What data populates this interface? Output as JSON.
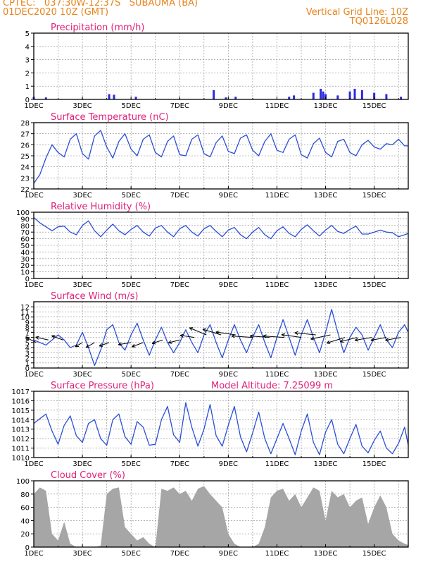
{
  "header": {
    "line1_left": "CPTEC:   037:30W-12:37S   SUBAUMA (BA)",
    "line2_left": "01DEC2020 10Z (GMT)",
    "line1_right": "Vertical Grid Line: 10Z",
    "line2_right": "TQ0126L028"
  },
  "colors": {
    "header": "#e8831c",
    "title": "#e0207a",
    "line": "#2a4fd6",
    "bar": "#2a2ae0",
    "cloud": "#a6a6a6",
    "arrow": "#000000",
    "grid": "#888888"
  },
  "chart_data": [
    {
      "type": "bar",
      "title": "Precipitation (mm/h)",
      "x_tick_labels": [
        "1DEC",
        "3DEC",
        "5DEC",
        "7DEC",
        "9DEC",
        "11DEC",
        "13DEC",
        "15DEC"
      ],
      "x_day_range": [
        1,
        16.4
      ],
      "ylim": [
        0,
        5
      ],
      "y_ticks": [
        0,
        1,
        2,
        3,
        4,
        5
      ],
      "series": [
        {
          "x": [
            1.0,
            1.5,
            3.0,
            4.1,
            4.3,
            5.2,
            8.4,
            8.9,
            9.3,
            11.5,
            11.7,
            12.5,
            12.8,
            12.9,
            13.0,
            13.5,
            14.0,
            14.2,
            14.5,
            15.0,
            15.5,
            16.1
          ],
          "values": [
            0.2,
            0.15,
            0.05,
            0.4,
            0.35,
            0.2,
            0.7,
            0.15,
            0.2,
            0.2,
            0.3,
            0.5,
            0.8,
            0.6,
            0.4,
            0.3,
            0.6,
            0.8,
            0.7,
            0.5,
            0.4,
            0.2
          ]
        }
      ]
    },
    {
      "type": "line",
      "title": "Surface Temperature (nC)",
      "x_tick_labels": [
        "1DEC",
        "3DEC",
        "5DEC",
        "7DEC",
        "9DEC",
        "11DEC",
        "13DEC",
        "15DEC"
      ],
      "x_day_range": [
        1,
        16.4
      ],
      "ylim": [
        22,
        28
      ],
      "y_ticks": [
        22,
        23,
        24,
        25,
        26,
        27,
        28
      ],
      "series": [
        {
          "x": [
            1.0,
            1.25,
            1.5,
            1.75,
            2.0,
            2.25,
            2.5,
            2.75,
            3.0,
            3.25,
            3.5,
            3.75,
            4.0,
            4.25,
            4.5,
            4.75,
            5.0,
            5.25,
            5.5,
            5.75,
            6.0,
            6.25,
            6.5,
            6.75,
            7.0,
            7.25,
            7.5,
            7.75,
            8.0,
            8.25,
            8.5,
            8.75,
            9.0,
            9.25,
            9.5,
            9.75,
            10.0,
            10.25,
            10.5,
            10.75,
            11.0,
            11.25,
            11.5,
            11.75,
            12.0,
            12.25,
            12.5,
            12.75,
            13.0,
            13.25,
            13.5,
            13.75,
            14.0,
            14.25,
            14.5,
            14.75,
            15.0,
            15.25,
            15.5,
            15.75,
            16.0,
            16.25,
            16.4
          ],
          "values": [
            22.5,
            23.3,
            24.8,
            26.0,
            25.3,
            24.9,
            26.5,
            27.0,
            25.2,
            24.7,
            26.8,
            27.3,
            25.8,
            24.8,
            26.3,
            27.0,
            25.6,
            25.0,
            26.5,
            26.9,
            25.3,
            24.9,
            26.3,
            26.8,
            25.1,
            25.0,
            26.5,
            26.9,
            25.2,
            24.9,
            26.2,
            26.8,
            25.4,
            25.2,
            26.6,
            26.9,
            25.5,
            25.0,
            26.3,
            27.0,
            25.5,
            25.3,
            26.5,
            26.9,
            25.1,
            24.8,
            26.1,
            26.6,
            25.3,
            24.9,
            26.3,
            26.5,
            25.3,
            25.0,
            26.0,
            26.4,
            25.8,
            25.6,
            26.1,
            26.0,
            26.5,
            25.9,
            25.9
          ]
        }
      ]
    },
    {
      "type": "line",
      "title": "Relative Humidity (%)",
      "x_tick_labels": [
        "1DEC",
        "3DEC",
        "5DEC",
        "7DEC",
        "9DEC",
        "11DEC",
        "13DEC",
        "15DEC"
      ],
      "x_day_range": [
        1,
        16.4
      ],
      "ylim": [
        0,
        100
      ],
      "y_ticks": [
        0,
        10,
        20,
        30,
        40,
        50,
        60,
        70,
        80,
        90,
        100
      ],
      "series": [
        {
          "x": [
            1.0,
            1.25,
            1.5,
            1.75,
            2.0,
            2.25,
            2.5,
            2.75,
            3.0,
            3.25,
            3.5,
            3.75,
            4.0,
            4.25,
            4.5,
            4.75,
            5.0,
            5.25,
            5.5,
            5.75,
            6.0,
            6.25,
            6.5,
            6.75,
            7.0,
            7.25,
            7.5,
            7.75,
            8.0,
            8.25,
            8.5,
            8.75,
            9.0,
            9.25,
            9.5,
            9.75,
            10.0,
            10.25,
            10.5,
            10.75,
            11.0,
            11.25,
            11.5,
            11.75,
            12.0,
            12.25,
            12.5,
            12.75,
            13.0,
            13.25,
            13.5,
            13.75,
            14.0,
            14.25,
            14.5,
            14.75,
            15.0,
            15.25,
            15.5,
            15.75,
            16.0,
            16.25,
            16.4
          ],
          "values": [
            92,
            84,
            78,
            72,
            78,
            79,
            70,
            66,
            80,
            87,
            72,
            63,
            73,
            82,
            72,
            66,
            74,
            80,
            70,
            64,
            76,
            80,
            70,
            63,
            75,
            80,
            70,
            64,
            75,
            80,
            71,
            63,
            73,
            77,
            66,
            60,
            70,
            77,
            66,
            60,
            72,
            78,
            68,
            63,
            74,
            81,
            72,
            64,
            73,
            80,
            71,
            68,
            74,
            79,
            67,
            67,
            70,
            73,
            70,
            69,
            63,
            66,
            68
          ]
        }
      ]
    },
    {
      "type": "line",
      "title": "Surface Wind (m/s)",
      "x_tick_labels": [
        "1DEC",
        "3DEC",
        "5DEC",
        "7DEC",
        "9DEC",
        "11DEC",
        "13DEC",
        "15DEC"
      ],
      "x_day_range": [
        1,
        16.4
      ],
      "ylim": [
        0,
        13
      ],
      "y_ticks": [
        0,
        1,
        2,
        3,
        4,
        5,
        6,
        7,
        8,
        9,
        10,
        11,
        12
      ],
      "series": [
        {
          "x": [
            1.0,
            1.25,
            1.5,
            1.75,
            2.0,
            2.25,
            2.5,
            2.75,
            3.0,
            3.25,
            3.5,
            3.75,
            4.0,
            4.25,
            4.5,
            4.75,
            5.0,
            5.25,
            5.5,
            5.75,
            6.0,
            6.25,
            6.5,
            6.75,
            7.0,
            7.25,
            7.5,
            7.75,
            8.0,
            8.25,
            8.5,
            8.75,
            9.0,
            9.25,
            9.5,
            9.75,
            10.0,
            10.25,
            10.5,
            10.75,
            11.0,
            11.25,
            11.5,
            11.75,
            12.0,
            12.25,
            12.5,
            12.75,
            13.0,
            13.25,
            13.5,
            13.75,
            14.0,
            14.25,
            14.5,
            14.75,
            15.0,
            15.25,
            15.5,
            15.75,
            16.0,
            16.25,
            16.4
          ],
          "values": [
            5.5,
            5.0,
            4.5,
            5.5,
            6.5,
            5.5,
            4.0,
            4.5,
            7.0,
            4.0,
            0.5,
            3.5,
            7.5,
            8.5,
            5.0,
            3.5,
            6.5,
            8.8,
            5.5,
            2.5,
            5.5,
            8.0,
            5.0,
            3.0,
            5.0,
            7.5,
            5.0,
            3.0,
            6.5,
            8.5,
            5.0,
            2.0,
            5.5,
            8.5,
            5.5,
            3.0,
            6.0,
            8.5,
            5.0,
            2.0,
            6.0,
            9.5,
            6.0,
            2.5,
            6.5,
            9.5,
            6.0,
            3.0,
            7.0,
            11.5,
            7.0,
            3.0,
            6.0,
            8.0,
            6.5,
            3.5,
            6.0,
            8.5,
            5.5,
            4.0,
            7.0,
            8.5,
            7.0
          ]
        }
      ],
      "wind_vectors": [
        {
          "day": 1.1,
          "speed": 5.0,
          "dx": -14,
          "dy": -7
        },
        {
          "day": 1.6,
          "speed": 5.5,
          "dx": -18,
          "dy": -4
        },
        {
          "day": 2.2,
          "speed": 5.5,
          "dx": -16,
          "dy": -6
        },
        {
          "day": 3.0,
          "speed": 5.0,
          "dx": -10,
          "dy": 6
        },
        {
          "day": 3.5,
          "speed": 5.0,
          "dx": -12,
          "dy": 7
        },
        {
          "day": 4.1,
          "speed": 5.0,
          "dx": -14,
          "dy": 5
        },
        {
          "day": 5.0,
          "speed": 5.0,
          "dx": -18,
          "dy": 3
        },
        {
          "day": 5.5,
          "speed": 5.0,
          "dx": -16,
          "dy": 6
        },
        {
          "day": 6.3,
          "speed": 5.5,
          "dx": -15,
          "dy": 5
        },
        {
          "day": 7.0,
          "speed": 5.5,
          "dx": -16,
          "dy": 4
        },
        {
          "day": 7.6,
          "speed": 6.0,
          "dx": -20,
          "dy": -3
        },
        {
          "day": 8.1,
          "speed": 6.5,
          "dx": -24,
          "dy": -10
        },
        {
          "day": 8.7,
          "speed": 6.5,
          "dx": -26,
          "dy": -8
        },
        {
          "day": 9.3,
          "speed": 6.5,
          "dx": -28,
          "dy": -4
        },
        {
          "day": 10.0,
          "speed": 6.0,
          "dx": -30,
          "dy": -2
        },
        {
          "day": 10.7,
          "speed": 6.0,
          "dx": -28,
          "dy": -2
        },
        {
          "day": 11.3,
          "speed": 6.0,
          "dx": -30,
          "dy": -2
        },
        {
          "day": 12.0,
          "speed": 6.0,
          "dx": -28,
          "dy": -4
        },
        {
          "day": 12.6,
          "speed": 6.5,
          "dx": -30,
          "dy": -3
        },
        {
          "day": 13.2,
          "speed": 6.5,
          "dx": -28,
          "dy": 6
        },
        {
          "day": 13.8,
          "speed": 6.0,
          "dx": -26,
          "dy": 8
        },
        {
          "day": 14.3,
          "speed": 6.0,
          "dx": -24,
          "dy": 6
        },
        {
          "day": 14.9,
          "speed": 6.0,
          "dx": -24,
          "dy": 4
        },
        {
          "day": 15.5,
          "speed": 6.0,
          "dx": -22,
          "dy": 4
        },
        {
          "day": 16.1,
          "speed": 6.0,
          "dx": -22,
          "dy": 4
        }
      ]
    },
    {
      "type": "line",
      "title": "Surface Pressure (hPa)",
      "annotation": "Model Altitude: 7.25099 m",
      "x_tick_labels": [
        "1DEC",
        "3DEC",
        "5DEC",
        "7DEC",
        "9DEC",
        "11DEC",
        "13DEC",
        "15DEC"
      ],
      "x_day_range": [
        1,
        16.4
      ],
      "ylim": [
        1010,
        1017
      ],
      "y_ticks": [
        1010,
        1011,
        1012,
        1013,
        1014,
        1015,
        1016,
        1017
      ],
      "series": [
        {
          "x": [
            1.0,
            1.25,
            1.5,
            1.75,
            2.0,
            2.25,
            2.5,
            2.75,
            3.0,
            3.25,
            3.5,
            3.75,
            4.0,
            4.25,
            4.5,
            4.75,
            5.0,
            5.25,
            5.5,
            5.75,
            6.0,
            6.25,
            6.5,
            6.75,
            7.0,
            7.25,
            7.5,
            7.75,
            8.0,
            8.25,
            8.5,
            8.75,
            9.0,
            9.25,
            9.5,
            9.75,
            10.0,
            10.25,
            10.5,
            10.75,
            11.0,
            11.25,
            11.5,
            11.75,
            12.0,
            12.25,
            12.5,
            12.75,
            13.0,
            13.25,
            13.5,
            13.75,
            14.0,
            14.25,
            14.5,
            14.75,
            15.0,
            15.25,
            15.5,
            15.75,
            16.0,
            16.25,
            16.4
          ],
          "values": [
            1013.6,
            1014.1,
            1014.6,
            1012.8,
            1011.4,
            1013.4,
            1014.4,
            1012.3,
            1011.6,
            1013.6,
            1014.0,
            1012.0,
            1011.3,
            1014.0,
            1014.6,
            1012.2,
            1011.4,
            1013.8,
            1013.2,
            1011.3,
            1011.4,
            1014.0,
            1015.4,
            1012.4,
            1011.6,
            1015.8,
            1013.2,
            1011.2,
            1013.0,
            1015.6,
            1012.3,
            1011.2,
            1013.4,
            1015.4,
            1012.2,
            1010.6,
            1012.6,
            1014.8,
            1012.0,
            1010.4,
            1012.0,
            1013.6,
            1012.0,
            1010.3,
            1012.8,
            1014.6,
            1011.6,
            1010.3,
            1012.7,
            1014.0,
            1011.4,
            1010.4,
            1012.0,
            1013.5,
            1011.2,
            1010.5,
            1011.8,
            1012.8,
            1011.0,
            1010.4,
            1011.5,
            1013.2,
            1011.3
          ]
        }
      ]
    },
    {
      "type": "area",
      "title": "Cloud Cover (%)",
      "x_tick_labels": [
        "1DEC",
        "3DEC",
        "5DEC",
        "7DEC",
        "9DEC",
        "11DEC",
        "13DEC",
        "15DEC"
      ],
      "x_day_range": [
        1,
        16.4
      ],
      "ylim": [
        0,
        100
      ],
      "y_ticks": [
        0,
        20,
        40,
        60,
        80,
        100
      ],
      "series": [
        {
          "x": [
            1.0,
            1.25,
            1.5,
            1.75,
            2.0,
            2.25,
            2.5,
            2.75,
            3.0,
            3.25,
            3.5,
            3.75,
            4.0,
            4.25,
            4.5,
            4.75,
            5.0,
            5.25,
            5.5,
            5.75,
            6.0,
            6.25,
            6.5,
            6.75,
            7.0,
            7.25,
            7.5,
            7.75,
            8.0,
            8.25,
            8.5,
            8.75,
            9.0,
            9.25,
            9.5,
            9.75,
            10.0,
            10.25,
            10.5,
            10.75,
            11.0,
            11.25,
            11.5,
            11.75,
            12.0,
            12.25,
            12.5,
            12.75,
            13.0,
            13.25,
            13.5,
            13.75,
            14.0,
            14.25,
            14.5,
            14.75,
            15.0,
            15.25,
            15.5,
            15.75,
            16.0,
            16.25,
            16.4
          ],
          "values": [
            80,
            90,
            85,
            20,
            10,
            38,
            5,
            0,
            0,
            0,
            0,
            2,
            80,
            88,
            90,
            30,
            20,
            10,
            15,
            5,
            0,
            88,
            85,
            90,
            80,
            85,
            70,
            88,
            92,
            80,
            70,
            60,
            20,
            5,
            0,
            0,
            0,
            5,
            30,
            75,
            85,
            88,
            70,
            80,
            60,
            75,
            90,
            85,
            40,
            85,
            75,
            80,
            60,
            70,
            75,
            35,
            60,
            78,
            60,
            20,
            10,
            5,
            3
          ]
        }
      ]
    }
  ]
}
